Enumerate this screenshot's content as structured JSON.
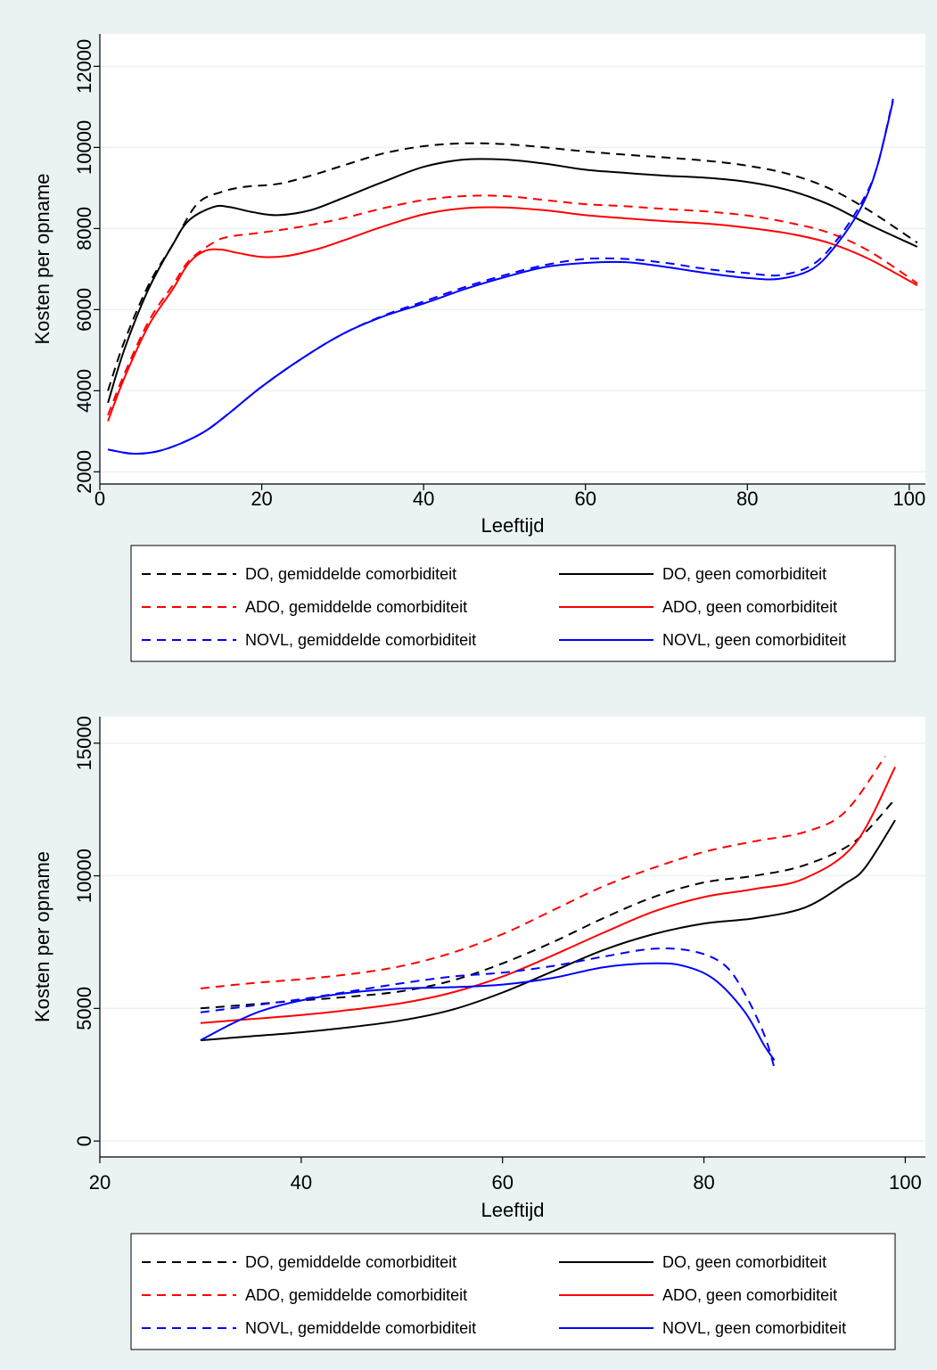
{
  "chart_data": [
    {
      "type": "line",
      "xlabel": "Leeftijd",
      "ylabel": "Kosten per opname",
      "xlim": [
        0,
        102
      ],
      "ylim": [
        1700,
        12800
      ],
      "xticks": [
        0,
        20,
        40,
        60,
        80,
        100
      ],
      "yticks": [
        2000,
        4000,
        6000,
        8000,
        10000,
        12000
      ],
      "grid": true,
      "legend_position": "bottom",
      "series": [
        {
          "name": "DO, gemiddelde comorbiditeit",
          "color": "#000000",
          "dash": "dashed",
          "points": [
            [
              1,
              4000
            ],
            [
              3,
              5200
            ],
            [
              6,
              6600
            ],
            [
              9,
              7600
            ],
            [
              12,
              8600
            ],
            [
              15,
              8900
            ],
            [
              18,
              9030
            ],
            [
              22,
              9100
            ],
            [
              26,
              9300
            ],
            [
              30,
              9550
            ],
            [
              35,
              9850
            ],
            [
              40,
              10030
            ],
            [
              45,
              10100
            ],
            [
              50,
              10080
            ],
            [
              55,
              10000
            ],
            [
              60,
              9900
            ],
            [
              65,
              9820
            ],
            [
              70,
              9750
            ],
            [
              75,
              9670
            ],
            [
              80,
              9550
            ],
            [
              85,
              9350
            ],
            [
              90,
              9000
            ],
            [
              95,
              8450
            ],
            [
              101,
              7650
            ]
          ]
        },
        {
          "name": "DO, geen comorbiditeit",
          "color": "#000000",
          "dash": "solid",
          "points": [
            [
              1,
              3700
            ],
            [
              3,
              5000
            ],
            [
              6,
              6500
            ],
            [
              9,
              7600
            ],
            [
              11,
              8200
            ],
            [
              14,
              8530
            ],
            [
              16,
              8530
            ],
            [
              19,
              8400
            ],
            [
              22,
              8330
            ],
            [
              26,
              8450
            ],
            [
              30,
              8750
            ],
            [
              35,
              9150
            ],
            [
              40,
              9520
            ],
            [
              45,
              9700
            ],
            [
              50,
              9700
            ],
            [
              55,
              9600
            ],
            [
              60,
              9450
            ],
            [
              65,
              9370
            ],
            [
              70,
              9300
            ],
            [
              75,
              9250
            ],
            [
              80,
              9150
            ],
            [
              85,
              8950
            ],
            [
              90,
              8600
            ],
            [
              95,
              8100
            ],
            [
              101,
              7550
            ]
          ]
        },
        {
          "name": "ADO, gemiddelde comorbiditeit",
          "color": "#ff0000",
          "dash": "dashed",
          "points": [
            [
              1,
              3400
            ],
            [
              3,
              4400
            ],
            [
              6,
              5700
            ],
            [
              9,
              6600
            ],
            [
              11,
              7200
            ],
            [
              14,
              7650
            ],
            [
              16,
              7800
            ],
            [
              20,
              7900
            ],
            [
              25,
              8050
            ],
            [
              30,
              8250
            ],
            [
              35,
              8500
            ],
            [
              40,
              8700
            ],
            [
              45,
              8800
            ],
            [
              50,
              8800
            ],
            [
              55,
              8700
            ],
            [
              60,
              8600
            ],
            [
              65,
              8550
            ],
            [
              70,
              8480
            ],
            [
              75,
              8420
            ],
            [
              80,
              8320
            ],
            [
              85,
              8150
            ],
            [
              90,
              7900
            ],
            [
              95,
              7450
            ],
            [
              101,
              6650
            ]
          ]
        },
        {
          "name": "ADO, geen comorbiditeit",
          "color": "#ff0000",
          "dash": "solid",
          "points": [
            [
              1,
              3250
            ],
            [
              3,
              4300
            ],
            [
              6,
              5600
            ],
            [
              9,
              6500
            ],
            [
              11,
              7150
            ],
            [
              13,
              7450
            ],
            [
              15,
              7480
            ],
            [
              17,
              7400
            ],
            [
              20,
              7300
            ],
            [
              23,
              7320
            ],
            [
              27,
              7500
            ],
            [
              30,
              7700
            ],
            [
              35,
              8050
            ],
            [
              40,
              8350
            ],
            [
              45,
              8500
            ],
            [
              50,
              8520
            ],
            [
              55,
              8450
            ],
            [
              60,
              8330
            ],
            [
              65,
              8250
            ],
            [
              70,
              8180
            ],
            [
              75,
              8120
            ],
            [
              80,
              8020
            ],
            [
              85,
              7880
            ],
            [
              90,
              7650
            ],
            [
              95,
              7250
            ],
            [
              101,
              6600
            ]
          ]
        },
        {
          "name": "NOVL, gemiddelde comorbiditeit",
          "color": "#0000ff",
          "dash": "dashed",
          "points": [
            [
              1,
              2550
            ],
            [
              4,
              2450
            ],
            [
              7,
              2500
            ],
            [
              10,
              2700
            ],
            [
              13,
              3000
            ],
            [
              16,
              3450
            ],
            [
              20,
              4100
            ],
            [
              25,
              4800
            ],
            [
              30,
              5400
            ],
            [
              35,
              5850
            ],
            [
              40,
              6200
            ],
            [
              45,
              6550
            ],
            [
              50,
              6850
            ],
            [
              55,
              7100
            ],
            [
              60,
              7250
            ],
            [
              65,
              7250
            ],
            [
              70,
              7150
            ],
            [
              75,
              7000
            ],
            [
              80,
              6900
            ],
            [
              84,
              6850
            ],
            [
              88,
              7100
            ],
            [
              91,
              7700
            ],
            [
              94,
              8600
            ],
            [
              96,
              9500
            ],
            [
              98,
              11200
            ]
          ]
        },
        {
          "name": "NOVL, geen comorbiditeit",
          "color": "#0000ff",
          "dash": "solid",
          "points": [
            [
              1,
              2550
            ],
            [
              4,
              2450
            ],
            [
              7,
              2500
            ],
            [
              10,
              2700
            ],
            [
              13,
              3000
            ],
            [
              16,
              3450
            ],
            [
              20,
              4100
            ],
            [
              25,
              4800
            ],
            [
              30,
              5400
            ],
            [
              35,
              5830
            ],
            [
              40,
              6150
            ],
            [
              45,
              6500
            ],
            [
              50,
              6800
            ],
            [
              55,
              7050
            ],
            [
              60,
              7150
            ],
            [
              65,
              7170
            ],
            [
              70,
              7050
            ],
            [
              75,
              6900
            ],
            [
              80,
              6780
            ],
            [
              84,
              6760
            ],
            [
              88,
              7000
            ],
            [
              91,
              7600
            ],
            [
              94,
              8500
            ],
            [
              96,
              9500
            ],
            [
              98,
              11150
            ]
          ]
        }
      ]
    },
    {
      "type": "line",
      "xlabel": "Leeftijd",
      "ylabel": "Kosten per opname",
      "xlim": [
        20,
        102
      ],
      "ylim": [
        -600,
        16000
      ],
      "xticks": [
        20,
        40,
        60,
        80,
        100
      ],
      "yticks": [
        0,
        5000,
        10000,
        15000
      ],
      "grid": true,
      "legend_position": "bottom",
      "series": [
        {
          "name": "DO, gemiddelde comorbiditeit",
          "color": "#000000",
          "dash": "dashed",
          "points": [
            [
              30,
              5000
            ],
            [
              35,
              5150
            ],
            [
              40,
              5300
            ],
            [
              45,
              5450
            ],
            [
              50,
              5650
            ],
            [
              55,
              6050
            ],
            [
              60,
              6700
            ],
            [
              65,
              7500
            ],
            [
              70,
              8400
            ],
            [
              75,
              9200
            ],
            [
              80,
              9750
            ],
            [
              85,
              10000
            ],
            [
              90,
              10400
            ],
            [
              95,
              11300
            ],
            [
              99,
              12900
            ]
          ]
        },
        {
          "name": "DO, geen comorbiditeit",
          "color": "#000000",
          "dash": "solid",
          "points": [
            [
              30,
              3800
            ],
            [
              35,
              3950
            ],
            [
              40,
              4100
            ],
            [
              45,
              4300
            ],
            [
              50,
              4550
            ],
            [
              55,
              4950
            ],
            [
              60,
              5600
            ],
            [
              65,
              6400
            ],
            [
              70,
              7200
            ],
            [
              75,
              7800
            ],
            [
              80,
              8200
            ],
            [
              85,
              8400
            ],
            [
              90,
              8800
            ],
            [
              94,
              9700
            ],
            [
              96,
              10300
            ],
            [
              99,
              12100
            ]
          ]
        },
        {
          "name": "ADO, gemiddelde comorbiditeit",
          "color": "#ff0000",
          "dash": "dashed",
          "points": [
            [
              30,
              5750
            ],
            [
              35,
              5950
            ],
            [
              40,
              6100
            ],
            [
              45,
              6300
            ],
            [
              50,
              6600
            ],
            [
              55,
              7100
            ],
            [
              60,
              7800
            ],
            [
              65,
              8700
            ],
            [
              70,
              9600
            ],
            [
              75,
              10300
            ],
            [
              80,
              10900
            ],
            [
              85,
              11300
            ],
            [
              90,
              11650
            ],
            [
              94,
              12400
            ],
            [
              98,
              14500
            ]
          ]
        },
        {
          "name": "ADO, geen comorbiditeit",
          "color": "#ff0000",
          "dash": "solid",
          "points": [
            [
              30,
              4450
            ],
            [
              35,
              4600
            ],
            [
              40,
              4750
            ],
            [
              45,
              4950
            ],
            [
              50,
              5200
            ],
            [
              55,
              5600
            ],
            [
              60,
              6200
            ],
            [
              65,
              7000
            ],
            [
              70,
              7850
            ],
            [
              75,
              8650
            ],
            [
              80,
              9200
            ],
            [
              85,
              9500
            ],
            [
              90,
              9900
            ],
            [
              95,
              11200
            ],
            [
              99,
              14100
            ]
          ]
        },
        {
          "name": "NOVL, gemiddelde comorbiditeit",
          "color": "#0000ff",
          "dash": "dashed",
          "points": [
            [
              30,
              4850
            ],
            [
              35,
              5100
            ],
            [
              40,
              5350
            ],
            [
              45,
              5650
            ],
            [
              50,
              5950
            ],
            [
              55,
              6200
            ],
            [
              60,
              6350
            ],
            [
              65,
              6600
            ],
            [
              70,
              6950
            ],
            [
              75,
              7250
            ],
            [
              79,
              7150
            ],
            [
              82,
              6650
            ],
            [
              84,
              5600
            ],
            [
              86,
              4000
            ],
            [
              87,
              2750
            ]
          ]
        },
        {
          "name": "NOVL, geen comorbiditeit",
          "color": "#0000ff",
          "dash": "solid",
          "points": [
            [
              30,
              3800
            ],
            [
              33,
              4400
            ],
            [
              36,
              4900
            ],
            [
              40,
              5300
            ],
            [
              45,
              5600
            ],
            [
              50,
              5750
            ],
            [
              55,
              5800
            ],
            [
              60,
              5900
            ],
            [
              65,
              6150
            ],
            [
              70,
              6550
            ],
            [
              75,
              6700
            ],
            [
              78,
              6600
            ],
            [
              81,
              6100
            ],
            [
              84,
              4900
            ],
            [
              86,
              3600
            ],
            [
              87,
              3050
            ]
          ]
        }
      ]
    }
  ],
  "colors": {
    "background": "#eaf2f3",
    "plot": "#ffffff",
    "grid": "#eaf2f3"
  }
}
